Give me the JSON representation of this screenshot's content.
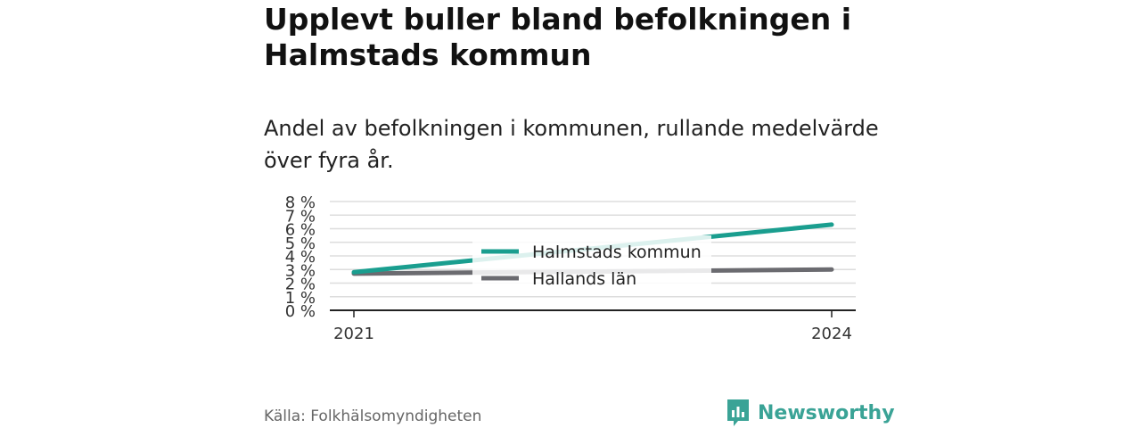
{
  "title": "Upplevt buller bland befolkningen i Halmstads kommun",
  "subtitle": "Andel av befolkningen i kommunen, rullande medelvärde över fyra år.",
  "source": "Källa: Folkhälsomyndigheten",
  "brand": {
    "name": "Newsworthy",
    "logo_icon": "newsworthy-logo-icon",
    "color": "#3aa396"
  },
  "colors": {
    "halmstad": "#1a9e8f",
    "halland": "#6b6b70",
    "grid": "#dddddd",
    "axis": "#222222"
  },
  "chart_data": {
    "type": "line",
    "title": "",
    "xlabel": "",
    "ylabel": "",
    "x": [
      2021,
      2024
    ],
    "x_tick_labels": [
      "2021",
      "2024"
    ],
    "ylim": [
      0,
      8
    ],
    "y_ticks": [
      0,
      1,
      2,
      3,
      4,
      5,
      6,
      7,
      8
    ],
    "y_tick_labels": [
      "0 %",
      "1 %",
      "2 %",
      "3 %",
      "4 %",
      "5 %",
      "6 %",
      "7 %",
      "8 %"
    ],
    "grid": true,
    "legend_position": "center",
    "series": [
      {
        "name": "Halmstads kommun",
        "color": "#1a9e8f",
        "values": [
          2.8,
          6.3
        ]
      },
      {
        "name": "Hallands län",
        "color": "#6b6b70",
        "values": [
          2.7,
          3.0
        ]
      }
    ]
  }
}
